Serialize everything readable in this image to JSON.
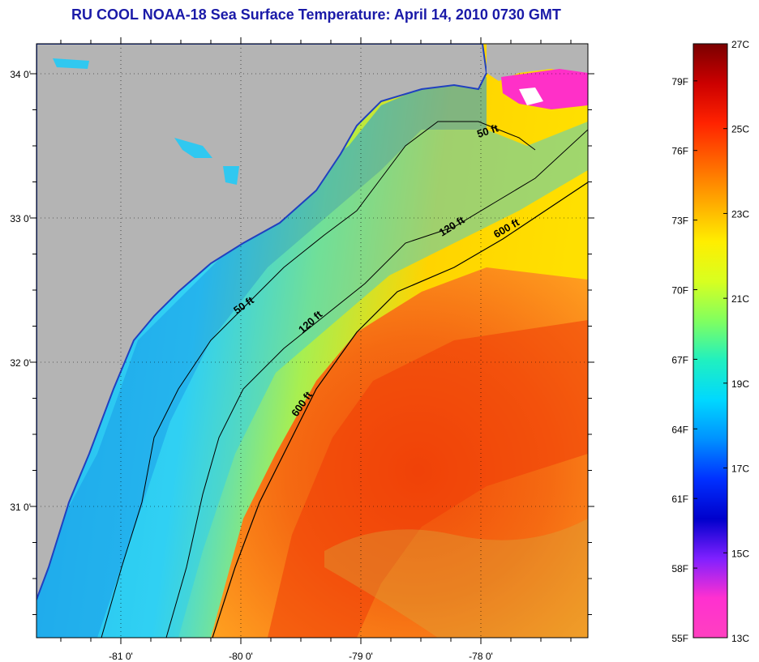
{
  "title": "RU COOL  NOAA-18  Sea Surface Temperature:  April 14, 2010 0730 GMT",
  "map": {
    "x_ticks": [
      {
        "lon": -81,
        "label": "-81 0'"
      },
      {
        "lon": -80,
        "label": "-80 0'"
      },
      {
        "lon": -79,
        "label": "-79 0'"
      },
      {
        "lon": -78,
        "label": "-78 0'"
      }
    ],
    "y_ticks": [
      {
        "lat": 34,
        "label": "34 0'"
      },
      {
        "lat": 33,
        "label": "33 0'"
      },
      {
        "lat": 32,
        "label": "32 0'"
      },
      {
        "lat": 31,
        "label": "31 0'"
      }
    ],
    "contour_labels": [
      {
        "text": "50 ft",
        "rotation": -18
      },
      {
        "text": "120 ft",
        "rotation": -32
      },
      {
        "text": "600 ft",
        "rotation": -30
      },
      {
        "text": "50 ft",
        "rotation": -35
      },
      {
        "text": "120 ft",
        "rotation": -42
      },
      {
        "text": "600 ft",
        "rotation": -55
      }
    ],
    "colors": {
      "land": "#b4b4b4",
      "shelf": "#2ec8f5",
      "gulf_stream": "#f05a10",
      "frame": "#000000"
    }
  },
  "colorbar": {
    "fahrenheit_labels": [
      "79F",
      "76F",
      "73F",
      "70F",
      "67F",
      "64F",
      "61F",
      "58F",
      "55F"
    ],
    "celsius_labels": [
      "27C",
      "25C",
      "23C",
      "21C",
      "19C",
      "17C",
      "15C",
      "13C"
    ],
    "range_f": [
      55,
      80.6
    ],
    "range_c": [
      13,
      27
    ],
    "gradient": [
      "#7a0000",
      "#cc0000",
      "#ff2200",
      "#ff6600",
      "#ffaa00",
      "#ffee00",
      "#d8ff20",
      "#80ff60",
      "#20f0c0",
      "#00d8ff",
      "#0090ff",
      "#0030ff",
      "#0000cc",
      "#8020ff",
      "#ff30d0",
      "#ff40c0"
    ]
  }
}
